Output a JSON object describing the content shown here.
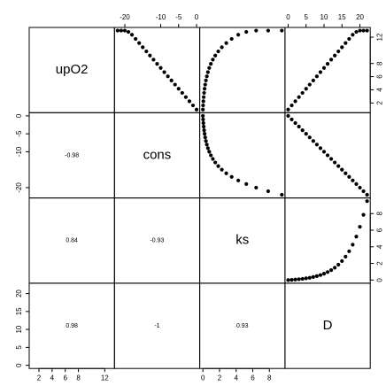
{
  "chart_data": {
    "type": "scatter_matrix",
    "variables": [
      {
        "name": "upO2",
        "lim": [
          0.52,
          13.48
        ],
        "ticks": [
          2,
          4,
          6,
          8,
          12
        ],
        "values": [
          1,
          1.63,
          2.26,
          2.89,
          3.53,
          4.16,
          4.79,
          5.42,
          6.05,
          6.68,
          7.32,
          7.95,
          8.58,
          9.21,
          9.84,
          10.47,
          11.11,
          11.74,
          12.37,
          12.8,
          13,
          13,
          13
        ]
      },
      {
        "name": "cons",
        "lim": [
          -22.88,
          0.88
        ],
        "ticks": [
          -20,
          -10,
          -5,
          0
        ],
        "values": [
          0,
          -1,
          -2,
          -3,
          -4,
          -5,
          -6,
          -7,
          -8,
          -9,
          -10,
          -11,
          -12,
          -13,
          -14,
          -15,
          -16,
          -17,
          -18,
          -19,
          -20,
          -21,
          -22
        ]
      },
      {
        "name": "ks",
        "lim": [
          -0.38,
          9.88
        ],
        "ticks": [
          0,
          2,
          4,
          6,
          8
        ],
        "values": [
          0,
          0.026,
          0.059,
          0.098,
          0.147,
          0.206,
          0.277,
          0.365,
          0.473,
          0.604,
          0.764,
          0.96,
          1.199,
          1.491,
          1.847,
          2.283,
          2.815,
          3.464,
          4.257,
          5.226,
          6.41,
          7.856,
          9.5
        ]
      },
      {
        "name": "D",
        "lim": [
          -0.88,
          22.88
        ],
        "ticks": [
          0,
          5,
          10,
          15,
          20
        ],
        "values": [
          0,
          1,
          2,
          3,
          4,
          5,
          6,
          7,
          8,
          9,
          10,
          11,
          12,
          13,
          14,
          15,
          16,
          17,
          18,
          19,
          20,
          21,
          22
        ]
      }
    ],
    "correlations": [
      -0.98,
      0.84,
      0.98,
      -0.93,
      -1,
      0.93
    ]
  }
}
